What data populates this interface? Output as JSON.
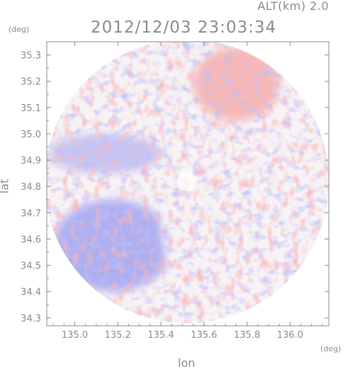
{
  "header": {
    "altitude_label": "ALT(km)  2.0",
    "timestamp": "2012/12/03 23:03:34"
  },
  "chart_data": {
    "type": "heatmap",
    "title": "2012/12/03 23:03:34",
    "subtitle": "ALT(km)  2.0",
    "xlabel": "lon",
    "ylabel": "lat",
    "x_unit": "(deg)",
    "y_unit": "(deg)",
    "xlim": [
      134.87,
      136.18
    ],
    "ylim": [
      34.27,
      35.35
    ],
    "x_ticks": [
      135.0,
      135.2,
      135.4,
      135.6,
      135.8,
      136.0
    ],
    "x_tick_labels": [
      "135.0",
      "135.2",
      "135.4",
      "135.6",
      "135.8",
      "136.0"
    ],
    "y_ticks": [
      34.3,
      34.4,
      34.5,
      34.6,
      34.7,
      34.8,
      34.9,
      35.0,
      35.1,
      35.2,
      35.3
    ],
    "y_tick_labels": [
      "34.3",
      "34.4",
      "34.5",
      "34.6",
      "34.7",
      "34.8",
      "34.9",
      "35.0",
      "35.1",
      "35.2",
      "35.3"
    ],
    "grid": false,
    "radar_center": {
      "lon": 135.52,
      "lat": 34.82
    },
    "radar_range_deg": {
      "lon": 0.66,
      "lat": 0.54
    },
    "colors": {
      "positive": "#f4a0a0",
      "negative": "#9da0f0",
      "neutral": "#f7f3f5",
      "axis": "#8a8a8a"
    },
    "regions": [
      {
        "name": "positive-north",
        "value": 0.8,
        "lon_range": [
          135.55,
          135.95
        ],
        "lat_range": [
          35.05,
          35.33
        ]
      },
      {
        "name": "negative-west",
        "value": -0.6,
        "lon_range": [
          134.88,
          135.4
        ],
        "lat_range": [
          34.85,
          35.0
        ]
      },
      {
        "name": "negative-southwest",
        "value": -0.9,
        "lon_range": [
          134.9,
          135.45
        ],
        "lat_range": [
          34.4,
          34.75
        ]
      },
      {
        "name": "neutral-center",
        "value": 0.0,
        "lon_range": [
          135.4,
          135.8
        ],
        "lat_range": [
          34.4,
          34.9
        ]
      }
    ]
  }
}
